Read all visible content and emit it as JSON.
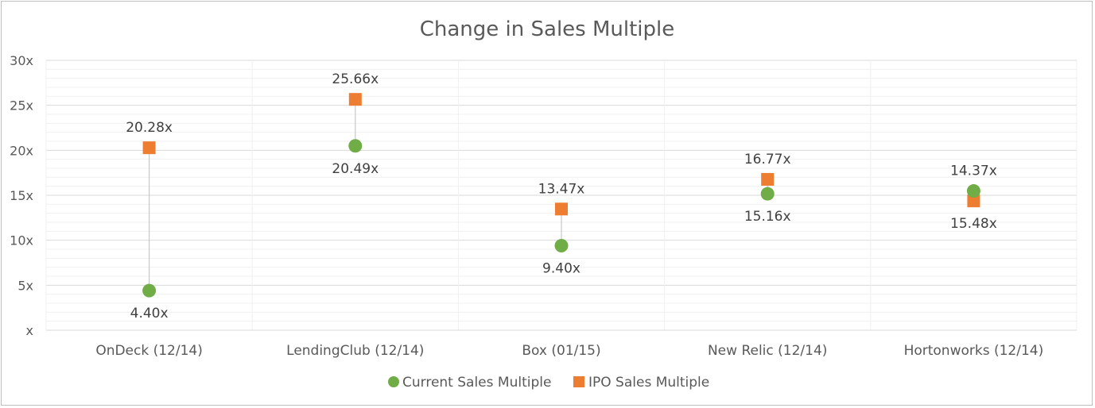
{
  "chart_data": {
    "type": "scatter",
    "title": "Change in Sales Multiple",
    "categories": [
      "OnDeck (12/14)",
      "LendingClub (12/14)",
      "Box (01/15)",
      "New Relic (12/14)",
      "Hortonworks (12/14)"
    ],
    "y_ticks": [
      "x",
      "5x",
      "10x",
      "15x",
      "20x",
      "25x",
      "30x"
    ],
    "ylim": [
      0,
      30
    ],
    "grid": true,
    "legend_position": "bottom",
    "series": [
      {
        "name": "Current Sales Multiple",
        "marker": "circle",
        "color": "#70ad47",
        "values": [
          4.4,
          20.49,
          9.4,
          15.16,
          15.48
        ],
        "labels": [
          "4.40x",
          "20.49x",
          "9.40x",
          "15.16x",
          "15.48x"
        ]
      },
      {
        "name": "IPO Sales Multiple",
        "marker": "square",
        "color": "#ed7d31",
        "values": [
          20.28,
          25.66,
          13.47,
          16.77,
          14.37
        ],
        "labels": [
          "20.28x",
          "25.66x",
          "13.47x",
          "16.77x",
          "14.37x"
        ]
      }
    ]
  }
}
